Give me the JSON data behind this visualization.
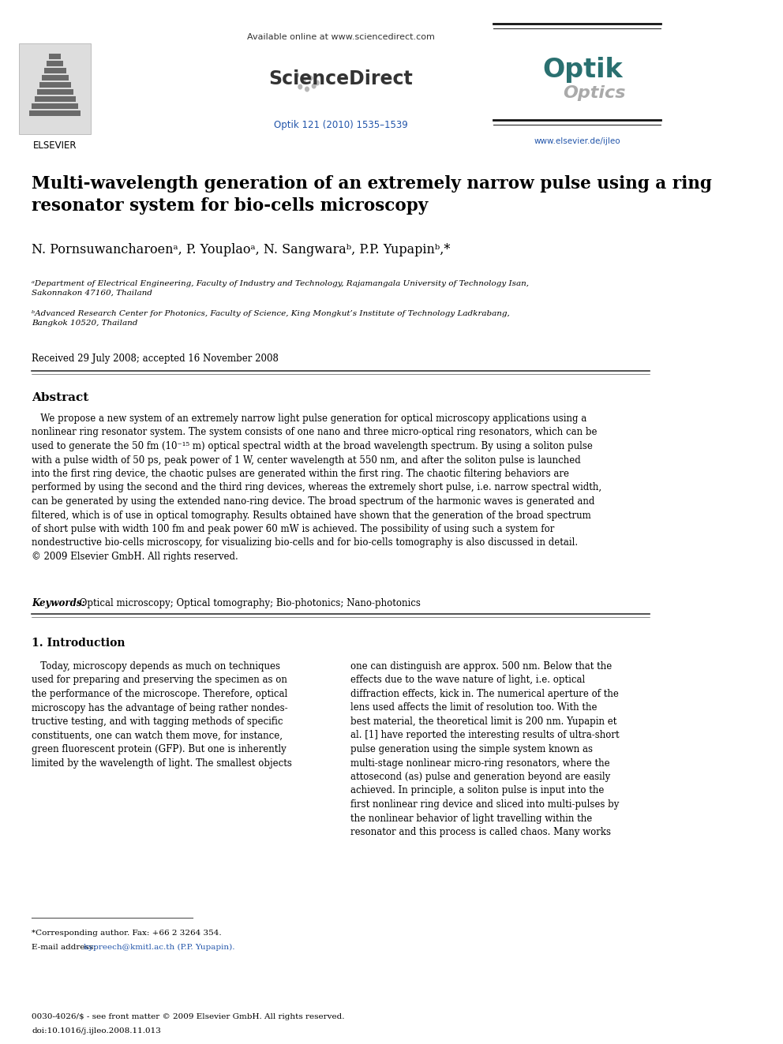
{
  "bg_color": "#ffffff",
  "text_color": "#000000",
  "blue_color": "#2255aa",
  "header_line_color": "#333333",
  "top_url": "Available online at www.sciencedirect.com",
  "journal_ref": "Optik 121 (2010) 1535–1539",
  "elsevier_text": "ELSEVIER",
  "journal_url": "www.elsevier.de/ijleo",
  "title": "Multi-wavelength generation of an extremely narrow pulse using a ring\nresonator system for bio-cells microscopy",
  "authors": "N. Pornsuwancharoenᵃ, P. Youplaoᵃ, N. Sangwaraᵇ, P.P. Yupapinᵇ,*",
  "affil_a": "ᵃDepartment of Electrical Engineering, Faculty of Industry and Technology, Rajamangala University of Technology Isan,\nSakonnakon 47160, Thailand",
  "affil_b": "ᵇAdvanced Research Center for Photonics, Faculty of Science, King Mongkut’s Institute of Technology Ladkrabang,\nBangkok 10520, Thailand",
  "received": "Received 29 July 2008; accepted 16 November 2008",
  "abstract_title": "Abstract",
  "abstract_text": "   We propose a new system of an extremely narrow light pulse generation for optical microscopy applications using a\nnonlinear ring resonator system. The system consists of one nano and three micro-optical ring resonators, which can be\nused to generate the 50 fm (10⁻¹⁵ m) optical spectral width at the broad wavelength spectrum. By using a soliton pulse\nwith a pulse width of 50 ps, peak power of 1 W, center wavelength at 550 nm, and after the soliton pulse is launched\ninto the first ring device, the chaotic pulses are generated within the first ring. The chaotic filtering behaviors are\nperformed by using the second and the third ring devices, whereas the extremely short pulse, i.e. narrow spectral width,\ncan be generated by using the extended nano-ring device. The broad spectrum of the harmonic waves is generated and\nfiltered, which is of use in optical tomography. Results obtained have shown that the generation of the broad spectrum\nof short pulse with width 100 fm and peak power 60 mW is achieved. The possibility of using such a system for\nnondestructive bio-cells microscopy, for visualizing bio-cells and for bio-cells tomography is also discussed in detail.\n© 2009 Elsevier GmbH. All rights reserved.",
  "keywords_label": "Keywords:",
  "keywords_text": " Optical microscopy; Optical tomography; Bio-photonics; Nano-photonics",
  "section1_title": "1. Introduction",
  "intro_col1": "   Today, microscopy depends as much on techniques\nused for preparing and preserving the specimen as on\nthe performance of the microscope. Therefore, optical\nmicroscopy has the advantage of being rather nondes-\ntructive testing, and with tagging methods of specific\nconstituents, one can watch them move, for instance,\ngreen fluorescent protein (GFP). But one is inherently\nlimited by the wavelength of light. The smallest objects",
  "intro_col2": "one can distinguish are approx. 500 nm. Below that the\neffects due to the wave nature of light, i.e. optical\ndiffraction effects, kick in. The numerical aperture of the\nlens used affects the limit of resolution too. With the\nbest material, the theoretical limit is 200 nm. Yupapin et\nal. [1] have reported the interesting results of ultra-short\npulse generation using the simple system known as\nmulti-stage nonlinear micro-ring resonators, where the\nattosecond (as) pulse and generation beyond are easily\nachieved. In principle, a soliton pulse is input into the\nfirst nonlinear ring device and sliced into multi-pulses by\nthe nonlinear behavior of light travelling within the\nresonator and this process is called chaos. Many works",
  "footnote_star": "*Corresponding author. Fax: +66 2 3264 354.",
  "footnote_email_label": "E-mail address: ",
  "footnote_email": "kypreech@kmitl.ac.th (P.P. Yupapin).",
  "footer_line1": "0030-4026/$ - see front matter © 2009 Elsevier GmbH. All rights reserved.",
  "footer_line2": "doi:10.1016/j.ijleo.2008.11.013"
}
